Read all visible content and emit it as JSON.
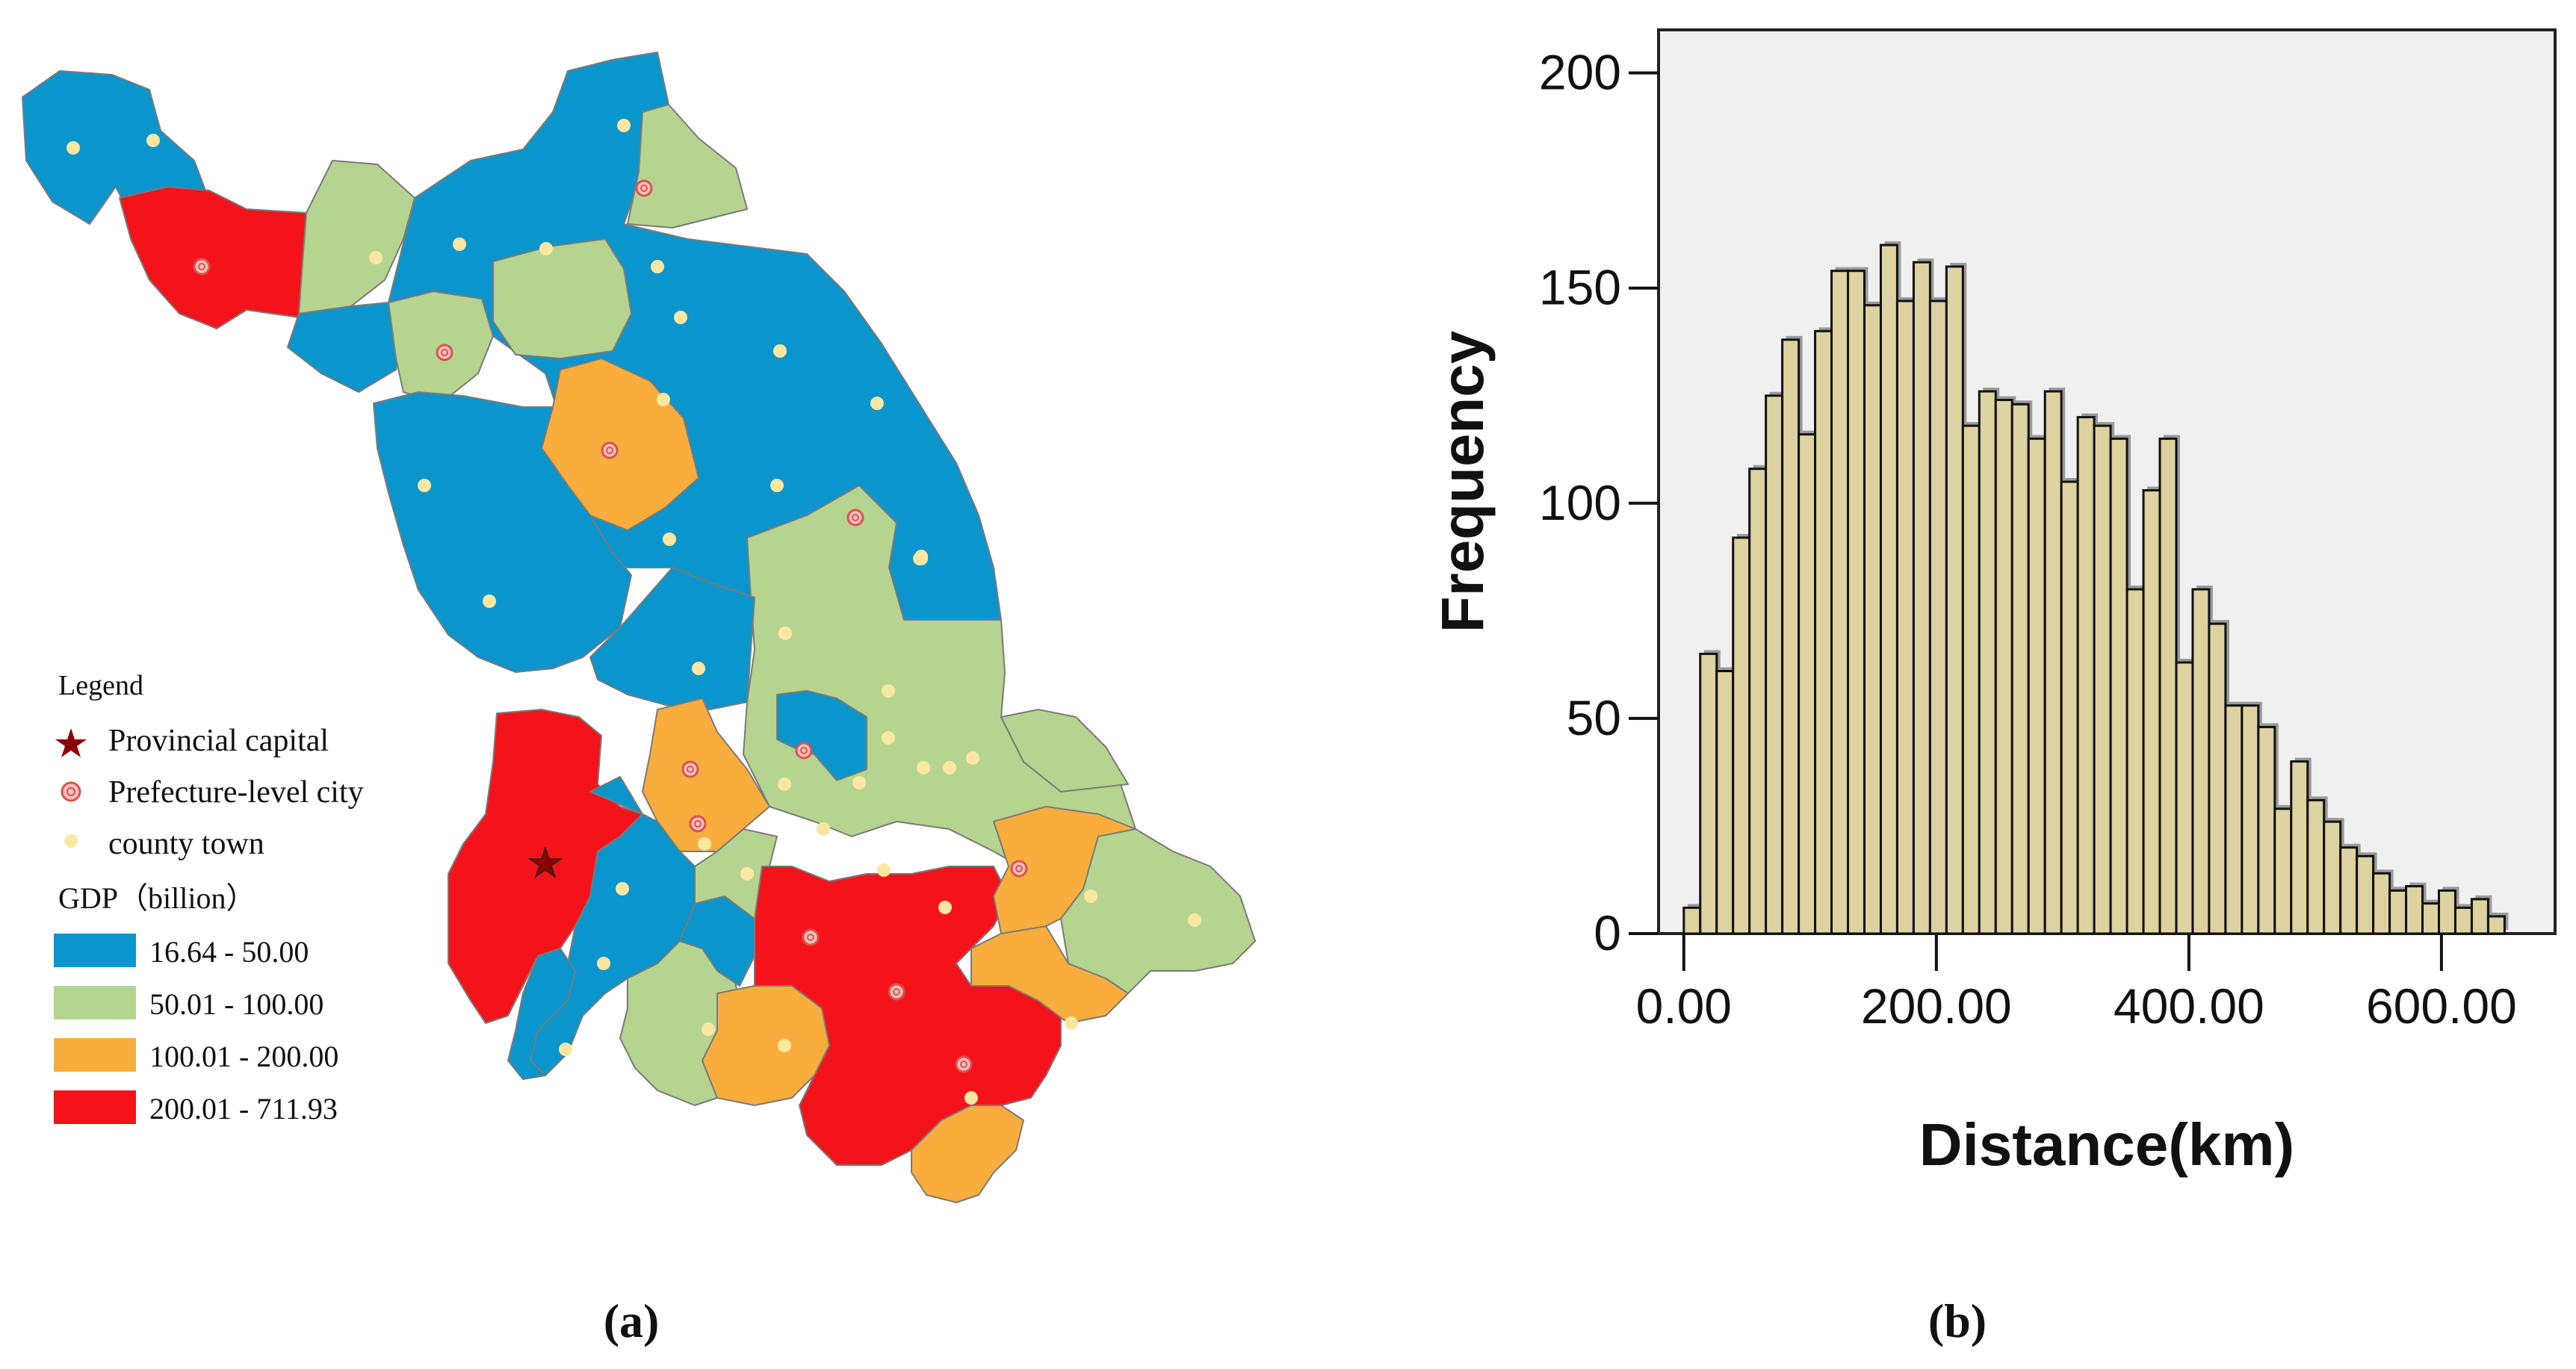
{
  "panel_a": {
    "label": "(a)",
    "legend": {
      "title": "Legend",
      "symbols": [
        {
          "label": "Provincial capital",
          "icon": "star-icon",
          "color": "#8b0000"
        },
        {
          "label": "Prefecture-level city",
          "icon": "double-circle-icon",
          "color": "#d9534f"
        },
        {
          "label": "county town",
          "icon": "dot-icon",
          "color": "#fbe7a1"
        }
      ],
      "gdp_title": "GDP（billion）",
      "classes": [
        {
          "label": "16.64 - 50.00",
          "color": "#0a95cc"
        },
        {
          "label": "50.01 - 100.00",
          "color": "#b5d48f"
        },
        {
          "label": "100.01 - 200.00",
          "color": "#f9ad3c"
        },
        {
          "label": "200.01 - 711.93",
          "color": "#f4131a"
        }
      ]
    }
  },
  "panel_b": {
    "label": "(b)",
    "chart_data": {
      "type": "bar",
      "xlabel": "Distance(km)",
      "ylabel": "Frequency",
      "xlim": [
        -20,
        690
      ],
      "ylim": [
        0,
        210
      ],
      "xticks": [
        "0.00",
        "200.00",
        "400.00",
        "600.00"
      ],
      "xtick_values": [
        0,
        200,
        400,
        600
      ],
      "yticks": [
        "0",
        "50",
        "100",
        "150",
        "200"
      ],
      "ytick_values": [
        0,
        50,
        100,
        150,
        200
      ],
      "bin_start": 0,
      "bin_width": 13,
      "values": [
        6,
        65,
        61,
        92,
        108,
        125,
        138,
        116,
        140,
        154,
        154,
        146,
        160,
        147,
        156,
        147,
        155,
        118,
        126,
        124,
        123,
        115,
        126,
        105,
        120,
        118,
        115,
        80,
        103,
        115,
        63,
        80,
        72,
        53,
        53,
        48,
        29,
        40,
        31,
        26,
        20,
        18,
        14,
        10,
        11,
        7,
        10,
        6,
        8,
        4
      ],
      "bar_color": "#ddd3a0",
      "plot_background": "#f0f0f0",
      "grid": false,
      "legend": "none"
    }
  }
}
